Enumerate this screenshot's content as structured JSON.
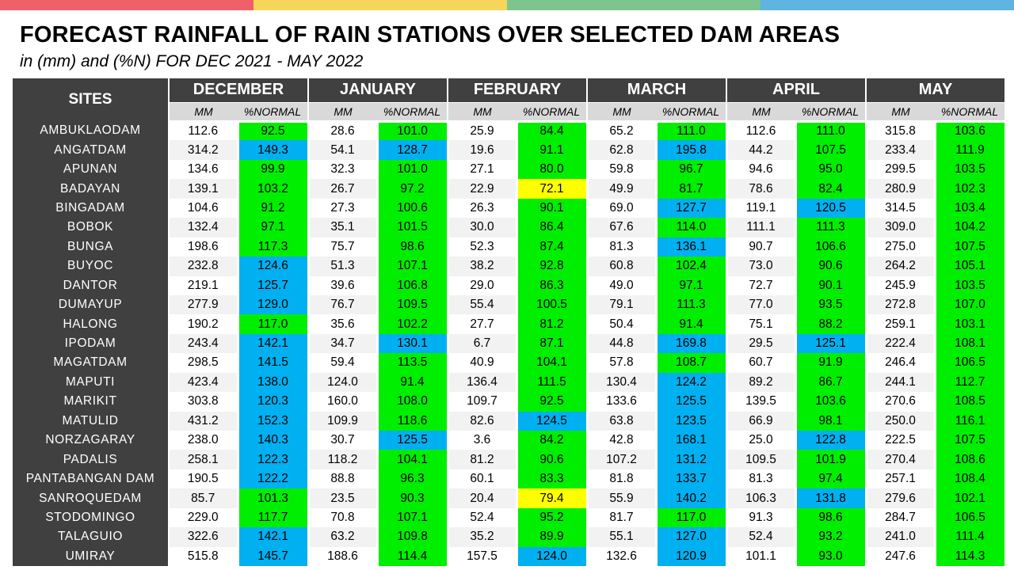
{
  "colors": {
    "top_bar": [
      "#f0606a",
      "#f5d55a",
      "#7ec48e",
      "#5fb4e0"
    ],
    "header_bg": "#404040",
    "subheader_bg": "#d9d9d9",
    "green": "#00ee00",
    "blue": "#00b0f0",
    "yellow": "#ffff00"
  },
  "title": "FORECAST RAINFALL OF RAIN STATIONS OVER SELECTED DAM AREAS",
  "subtitle": "in (mm) and (%N) FOR DEC 2021 - MAY 2022",
  "table": {
    "sites_header": "SITES",
    "months": [
      "DECEMBER",
      "JANUARY",
      "FEBRUARY",
      "MARCH",
      "APRIL",
      "MAY"
    ],
    "sub_mm": "MM",
    "sub_pct": "%NORMAL",
    "rows": [
      {
        "site": "AMBUKLAODAM",
        "v": [
          [
            "112.6",
            "92.5",
            "g"
          ],
          [
            "28.6",
            "101.0",
            "g"
          ],
          [
            "25.9",
            "84.4",
            "g"
          ],
          [
            "65.2",
            "111.0",
            "g"
          ],
          [
            "112.6",
            "111.0",
            "g"
          ],
          [
            "315.8",
            "103.6",
            "g"
          ]
        ]
      },
      {
        "site": "ANGATDAM",
        "v": [
          [
            "314.2",
            "149.3",
            "b"
          ],
          [
            "54.1",
            "128.7",
            "b"
          ],
          [
            "19.6",
            "91.1",
            "g"
          ],
          [
            "62.8",
            "195.8",
            "b"
          ],
          [
            "44.2",
            "107.5",
            "g"
          ],
          [
            "233.4",
            "111.9",
            "g"
          ]
        ]
      },
      {
        "site": "APUNAN",
        "v": [
          [
            "134.6",
            "99.9",
            "g"
          ],
          [
            "32.3",
            "101.0",
            "g"
          ],
          [
            "27.1",
            "80.0",
            "g"
          ],
          [
            "59.8",
            "96.7",
            "g"
          ],
          [
            "94.6",
            "95.0",
            "g"
          ],
          [
            "299.5",
            "103.5",
            "g"
          ]
        ]
      },
      {
        "site": "BADAYAN",
        "v": [
          [
            "139.1",
            "103.2",
            "g"
          ],
          [
            "26.7",
            "97.2",
            "g"
          ],
          [
            "22.9",
            "72.1",
            "y"
          ],
          [
            "49.9",
            "81.7",
            "g"
          ],
          [
            "78.6",
            "82.4",
            "g"
          ],
          [
            "280.9",
            "102.3",
            "g"
          ]
        ]
      },
      {
        "site": "BINGADAM",
        "v": [
          [
            "104.6",
            "91.2",
            "g"
          ],
          [
            "27.3",
            "100.6",
            "g"
          ],
          [
            "26.3",
            "90.1",
            "g"
          ],
          [
            "69.0",
            "127.7",
            "b"
          ],
          [
            "119.1",
            "120.5",
            "b"
          ],
          [
            "314.5",
            "103.4",
            "g"
          ]
        ]
      },
      {
        "site": "BOBOK",
        "v": [
          [
            "132.4",
            "97.1",
            "g"
          ],
          [
            "35.1",
            "101.5",
            "g"
          ],
          [
            "30.0",
            "86.4",
            "g"
          ],
          [
            "67.6",
            "114.0",
            "g"
          ],
          [
            "111.1",
            "111.3",
            "g"
          ],
          [
            "309.0",
            "104.2",
            "g"
          ]
        ]
      },
      {
        "site": "BUNGA",
        "v": [
          [
            "198.6",
            "117.3",
            "g"
          ],
          [
            "75.7",
            "98.6",
            "g"
          ],
          [
            "52.3",
            "87.4",
            "g"
          ],
          [
            "81.3",
            "136.1",
            "b"
          ],
          [
            "90.7",
            "106.6",
            "g"
          ],
          [
            "275.0",
            "107.5",
            "g"
          ]
        ]
      },
      {
        "site": "BUYOC",
        "v": [
          [
            "232.8",
            "124.6",
            "b"
          ],
          [
            "51.3",
            "107.1",
            "g"
          ],
          [
            "38.2",
            "92.8",
            "g"
          ],
          [
            "60.8",
            "102.4",
            "g"
          ],
          [
            "73.0",
            "90.6",
            "g"
          ],
          [
            "264.2",
            "105.1",
            "g"
          ]
        ]
      },
      {
        "site": "DANTOR",
        "v": [
          [
            "219.1",
            "125.7",
            "b"
          ],
          [
            "39.6",
            "106.8",
            "g"
          ],
          [
            "29.0",
            "86.3",
            "g"
          ],
          [
            "49.0",
            "97.1",
            "g"
          ],
          [
            "72.7",
            "90.1",
            "g"
          ],
          [
            "245.9",
            "103.5",
            "g"
          ]
        ]
      },
      {
        "site": "DUMAYUP",
        "v": [
          [
            "277.9",
            "129.0",
            "b"
          ],
          [
            "76.7",
            "109.5",
            "g"
          ],
          [
            "55.4",
            "100.5",
            "g"
          ],
          [
            "79.1",
            "111.3",
            "g"
          ],
          [
            "77.0",
            "93.5",
            "g"
          ],
          [
            "272.8",
            "107.0",
            "g"
          ]
        ]
      },
      {
        "site": "HALONG",
        "v": [
          [
            "190.2",
            "117.0",
            "g"
          ],
          [
            "35.6",
            "102.2",
            "g"
          ],
          [
            "27.7",
            "81.2",
            "g"
          ],
          [
            "50.4",
            "91.4",
            "g"
          ],
          [
            "75.1",
            "88.2",
            "g"
          ],
          [
            "259.1",
            "103.1",
            "g"
          ]
        ]
      },
      {
        "site": "IPODAM",
        "v": [
          [
            "243.4",
            "142.1",
            "b"
          ],
          [
            "34.7",
            "130.1",
            "b"
          ],
          [
            "6.7",
            "87.1",
            "g"
          ],
          [
            "44.8",
            "169.8",
            "b"
          ],
          [
            "29.5",
            "125.1",
            "b"
          ],
          [
            "222.4",
            "108.1",
            "g"
          ]
        ]
      },
      {
        "site": "MAGATDAM",
        "v": [
          [
            "298.5",
            "141.5",
            "b"
          ],
          [
            "59.4",
            "113.5",
            "g"
          ],
          [
            "40.9",
            "104.1",
            "g"
          ],
          [
            "57.8",
            "108.7",
            "g"
          ],
          [
            "60.7",
            "91.9",
            "g"
          ],
          [
            "246.4",
            "106.5",
            "g"
          ]
        ]
      },
      {
        "site": "MAPUTI",
        "v": [
          [
            "423.4",
            "138.0",
            "b"
          ],
          [
            "124.0",
            "91.4",
            "g"
          ],
          [
            "136.4",
            "111.5",
            "g"
          ],
          [
            "130.4",
            "124.2",
            "b"
          ],
          [
            "89.2",
            "86.7",
            "g"
          ],
          [
            "244.1",
            "112.7",
            "g"
          ]
        ]
      },
      {
        "site": "MARIKIT",
        "v": [
          [
            "303.8",
            "120.3",
            "b"
          ],
          [
            "160.0",
            "108.0",
            "g"
          ],
          [
            "109.7",
            "92.5",
            "g"
          ],
          [
            "133.6",
            "125.5",
            "b"
          ],
          [
            "139.5",
            "103.6",
            "g"
          ],
          [
            "270.6",
            "108.5",
            "g"
          ]
        ]
      },
      {
        "site": "MATULID",
        "v": [
          [
            "431.2",
            "152.3",
            "b"
          ],
          [
            "109.9",
            "118.6",
            "g"
          ],
          [
            "82.6",
            "124.5",
            "b"
          ],
          [
            "63.8",
            "123.5",
            "b"
          ],
          [
            "66.9",
            "98.1",
            "g"
          ],
          [
            "250.0",
            "116.1",
            "g"
          ]
        ]
      },
      {
        "site": "NORZAGARAY",
        "v": [
          [
            "238.0",
            "140.3",
            "b"
          ],
          [
            "30.7",
            "125.5",
            "b"
          ],
          [
            "3.6",
            "84.2",
            "g"
          ],
          [
            "42.8",
            "168.1",
            "b"
          ],
          [
            "25.0",
            "122.8",
            "b"
          ],
          [
            "222.5",
            "107.5",
            "g"
          ]
        ]
      },
      {
        "site": "PADALIS",
        "v": [
          [
            "258.1",
            "122.3",
            "b"
          ],
          [
            "118.2",
            "104.1",
            "g"
          ],
          [
            "81.2",
            "90.6",
            "g"
          ],
          [
            "107.2",
            "131.2",
            "b"
          ],
          [
            "109.5",
            "101.9",
            "g"
          ],
          [
            "270.4",
            "108.6",
            "g"
          ]
        ]
      },
      {
        "site": "PANTABANGAN DAM",
        "v": [
          [
            "190.5",
            "122.2",
            "b"
          ],
          [
            "88.8",
            "96.3",
            "g"
          ],
          [
            "60.1",
            "83.3",
            "g"
          ],
          [
            "81.8",
            "133.7",
            "b"
          ],
          [
            "81.3",
            "97.4",
            "g"
          ],
          [
            "257.1",
            "108.4",
            "g"
          ]
        ]
      },
      {
        "site": "SANROQUEDAM",
        "v": [
          [
            "85.7",
            "101.3",
            "g"
          ],
          [
            "23.5",
            "90.3",
            "g"
          ],
          [
            "20.4",
            "79.4",
            "y"
          ],
          [
            "55.9",
            "140.2",
            "b"
          ],
          [
            "106.3",
            "131.8",
            "b"
          ],
          [
            "279.6",
            "102.1",
            "g"
          ]
        ]
      },
      {
        "site": "STODOMINGO",
        "v": [
          [
            "229.0",
            "117.7",
            "g"
          ],
          [
            "70.8",
            "107.1",
            "g"
          ],
          [
            "52.4",
            "95.2",
            "g"
          ],
          [
            "81.7",
            "117.0",
            "g"
          ],
          [
            "91.3",
            "98.6",
            "g"
          ],
          [
            "284.7",
            "106.5",
            "g"
          ]
        ]
      },
      {
        "site": "TALAGUIO",
        "v": [
          [
            "322.6",
            "142.1",
            "b"
          ],
          [
            "63.2",
            "109.8",
            "g"
          ],
          [
            "35.2",
            "89.9",
            "g"
          ],
          [
            "55.1",
            "127.0",
            "b"
          ],
          [
            "52.4",
            "93.2",
            "g"
          ],
          [
            "241.0",
            "111.4",
            "g"
          ]
        ]
      },
      {
        "site": "UMIRAY",
        "v": [
          [
            "515.8",
            "145.7",
            "b"
          ],
          [
            "188.6",
            "114.4",
            "g"
          ],
          [
            "157.5",
            "124.0",
            "b"
          ],
          [
            "132.6",
            "120.9",
            "b"
          ],
          [
            "101.1",
            "93.0",
            "g"
          ],
          [
            "247.6",
            "114.3",
            "g"
          ]
        ]
      }
    ]
  }
}
